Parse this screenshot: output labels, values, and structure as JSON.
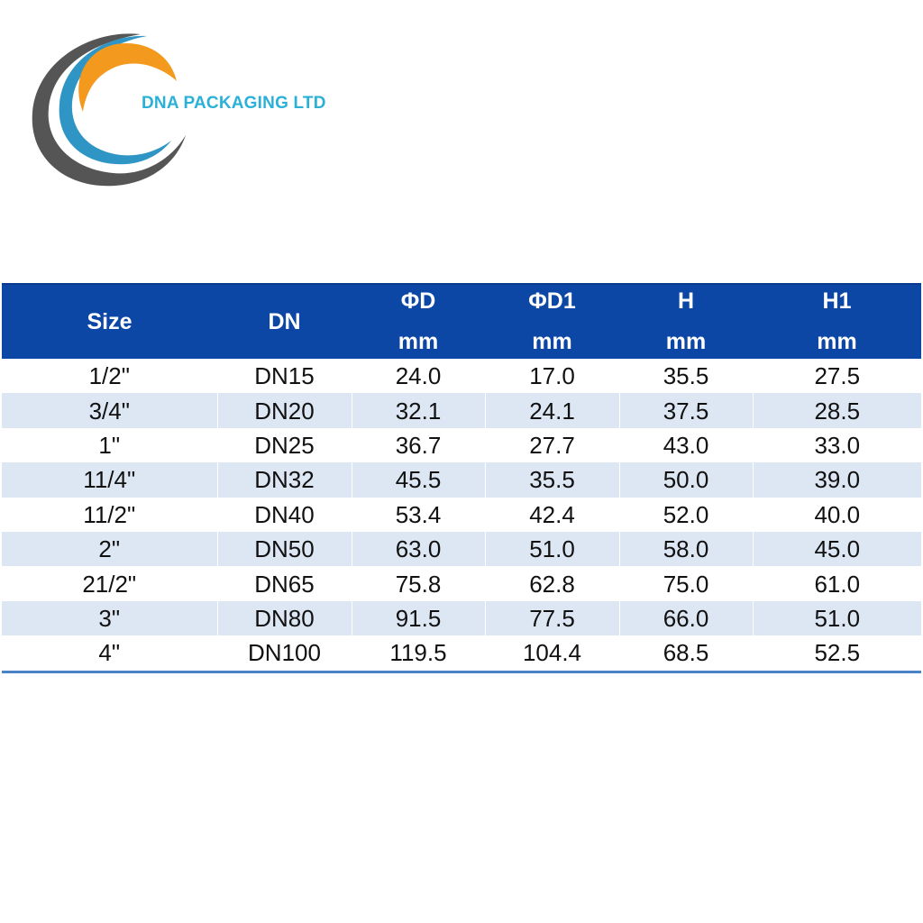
{
  "brand": {
    "name": "DNA PACKAGING LTD",
    "text_color": "#2bb1d8"
  },
  "logo": {
    "icon": "concentric-swoosh-logo",
    "colors": [
      "#555555",
      "#2e95c4",
      "#f39a1e"
    ]
  },
  "table": {
    "header_bg": "#0c47a6",
    "row_alt_bg": "#dde6f3",
    "headers": [
      {
        "label": "Size",
        "unit": ""
      },
      {
        "label": "DN",
        "unit": ""
      },
      {
        "label": "ΦD",
        "unit": "mm"
      },
      {
        "label": "ΦD1",
        "unit": "mm"
      },
      {
        "label": "H",
        "unit": "mm"
      },
      {
        "label": "H1",
        "unit": "mm"
      }
    ],
    "rows": [
      [
        "1/2\"",
        "DN15",
        "24.0",
        "17.0",
        "35.5",
        "27.5"
      ],
      [
        "3/4\"",
        "DN20",
        "32.1",
        "24.1",
        "37.5",
        "28.5"
      ],
      [
        "1\"",
        "DN25",
        "36.7",
        "27.7",
        "43.0",
        "33.0"
      ],
      [
        "11/4\"",
        "DN32",
        "45.5",
        "35.5",
        "50.0",
        "39.0"
      ],
      [
        "11/2\"",
        "DN40",
        "53.4",
        "42.4",
        "52.0",
        "40.0"
      ],
      [
        "2\"",
        "DN50",
        "63.0",
        "51.0",
        "58.0",
        "45.0"
      ],
      [
        "21/2\"",
        "DN65",
        "75.8",
        "62.8",
        "75.0",
        "61.0"
      ],
      [
        "3\"",
        "DN80",
        "91.5",
        "77.5",
        "66.0",
        "51.0"
      ],
      [
        "4\"",
        "DN100",
        "119.5",
        "104.4",
        "68.5",
        "52.5"
      ]
    ]
  }
}
